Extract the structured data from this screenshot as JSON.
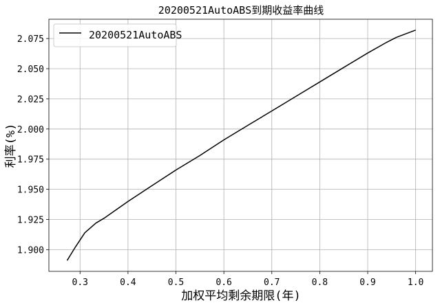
{
  "chart_data": {
    "type": "line",
    "title": "20200521AutoABS到期收益率曲线",
    "xlabel": "加权平均剩余期限(年)",
    "ylabel": "利率(%)",
    "xlim": [
      0.235,
      1.035
    ],
    "ylim": [
      1.882,
      2.091
    ],
    "x_ticks": [
      0.3,
      0.4,
      0.5,
      0.6,
      0.7,
      0.8,
      0.9,
      1.0
    ],
    "x_tick_labels": [
      "0.3",
      "0.4",
      "0.5",
      "0.6",
      "0.7",
      "0.8",
      "0.9",
      "1.0"
    ],
    "y_ticks": [
      1.9,
      1.925,
      1.95,
      1.975,
      2.0,
      2.025,
      2.05,
      2.075
    ],
    "y_tick_labels": [
      "1.900",
      "1.925",
      "1.950",
      "1.975",
      "2.000",
      "2.025",
      "2.050",
      "2.075"
    ],
    "grid": true,
    "legend_position": "top-left",
    "series": [
      {
        "name": "20200521AutoABS",
        "color": "#000000",
        "x": [
          0.273,
          0.29,
          0.31,
          0.333,
          0.35,
          0.4,
          0.45,
          0.5,
          0.55,
          0.6,
          0.65,
          0.7,
          0.75,
          0.8,
          0.85,
          0.9,
          0.94,
          0.96,
          1.0
        ],
        "y": [
          1.891,
          1.902,
          1.914,
          1.922,
          1.926,
          1.94,
          1.953,
          1.966,
          1.978,
          1.991,
          2.003,
          2.015,
          2.027,
          2.039,
          2.051,
          2.063,
          2.072,
          2.076,
          2.082
        ]
      }
    ]
  }
}
